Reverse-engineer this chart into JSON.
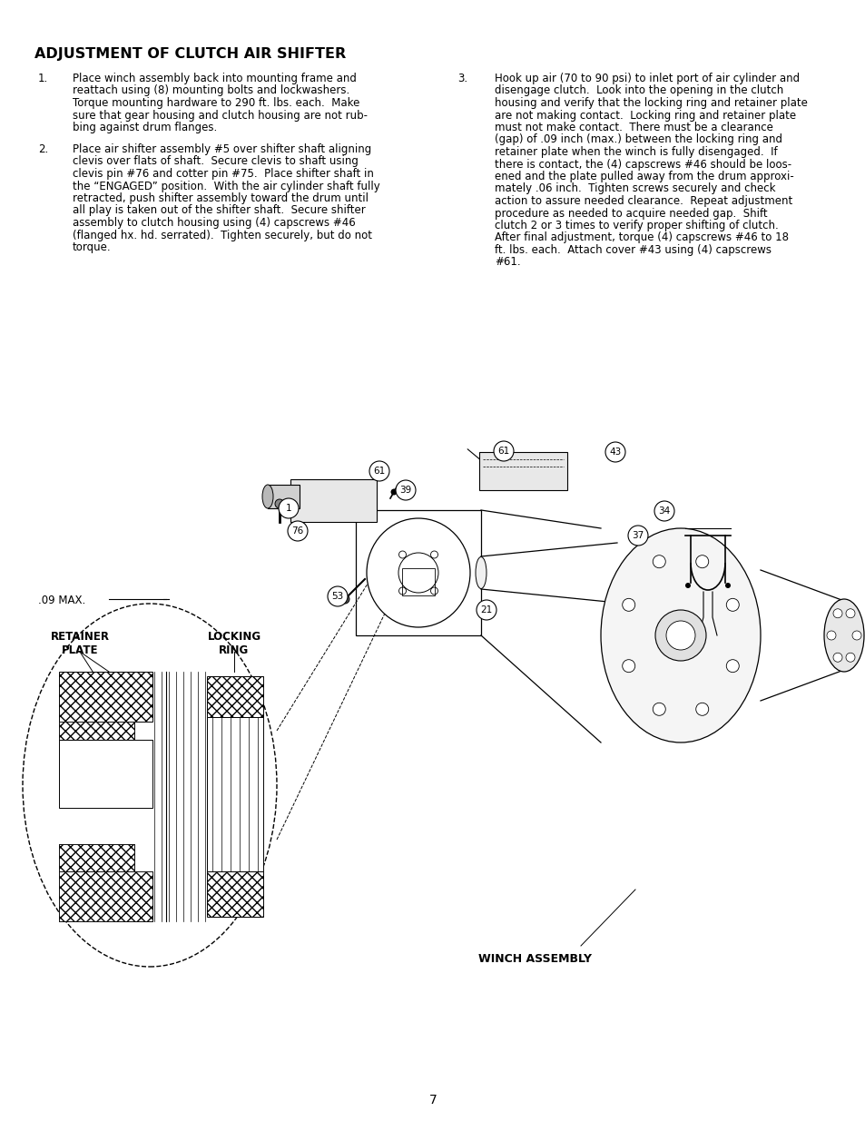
{
  "title": "ADJUSTMENT OF CLUTCH AIR SHIFTER",
  "page_number": "7",
  "bg_color": "#ffffff",
  "text_color": "#000000",
  "item1_number": "1.",
  "item1_lines": [
    "Place winch assembly back into mounting frame and",
    "reattach using (8) mounting bolts and lockwashers.",
    "Torque mounting hardware to 290 ft. lbs. each.  Make",
    "sure that gear housing and clutch housing are not rub-",
    "bing against drum flanges."
  ],
  "item2_number": "2.",
  "item2_lines": [
    "Place air shifter assembly #5 over shifter shaft aligning",
    "clevis over flats of shaft.  Secure clevis to shaft using",
    "clevis pin #76 and cotter pin #75.  Place shifter shaft in",
    "the “ENGAGED” position.  With the air cylinder shaft fully",
    "retracted, push shifter assembly toward the drum until",
    "all play is taken out of the shifter shaft.  Secure shifter",
    "assembly to clutch housing using (4) capscrews #46",
    "(flanged hx. hd. serrated).  Tighten securely, but do not",
    "torque."
  ],
  "item3_number": "3.",
  "item3_lines": [
    "Hook up air (70 to 90 psi) to inlet port of air cylinder and",
    "disengage clutch.  Look into the opening in the clutch",
    "housing and verify that the locking ring and retainer plate",
    "are not making contact.  Locking ring and retainer plate",
    "must not make contact.  There must be a clearance",
    "(gap) of .09 inch (max.) between the locking ring and",
    "retainer plate when the winch is fully disengaged.  If",
    "there is contact, the (4) capscrews #46 should be loos-",
    "ened and the plate pulled away from the drum approxi-",
    "mately .06 inch.  Tighten screws securely and check",
    "action to assure needed clearance.  Repeat adjustment",
    "procedure as needed to acquire needed gap.  Shift",
    "clutch 2 or 3 times to verify proper shifting of clutch.",
    "After final adjustment, torque (4) capscrews #46 to 18",
    "ft. lbs. each.  Attach cover #43 using (4) capscrews",
    "#61."
  ],
  "font_size_body": 8.5,
  "font_size_title": 11.5
}
